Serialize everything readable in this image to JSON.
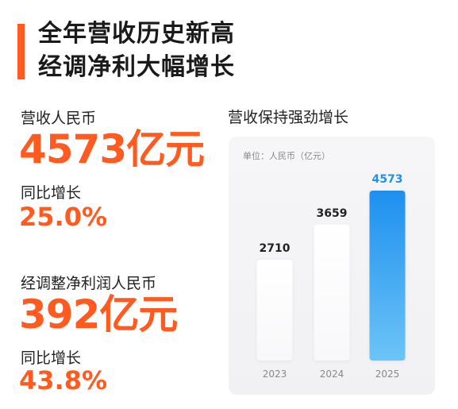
{
  "headline": {
    "line1": "全年营收历史新高",
    "line2": "经调净利大幅增长"
  },
  "revenue": {
    "label": "营收人民币",
    "value": "4573亿元",
    "yoy_label": "同比增长",
    "yoy_value": "25.0%"
  },
  "profit": {
    "label": "经调整净利润人民币",
    "value": "392亿元",
    "yoy_label": "同比增长",
    "yoy_value": "43.8%"
  },
  "colors": {
    "accent": "#ff5a1f",
    "highlight_bar": "#1e90ef",
    "highlight_label": "#1e90ef"
  },
  "chart_data": {
    "type": "bar",
    "title": "营收保持强劲增长",
    "unit": "单位：人民币（亿元）",
    "categories": [
      "2023",
      "2024",
      "2025"
    ],
    "values": [
      2710,
      3659,
      4573
    ],
    "ylim": [
      0,
      4573
    ],
    "highlight_index": 2,
    "grid": false
  }
}
